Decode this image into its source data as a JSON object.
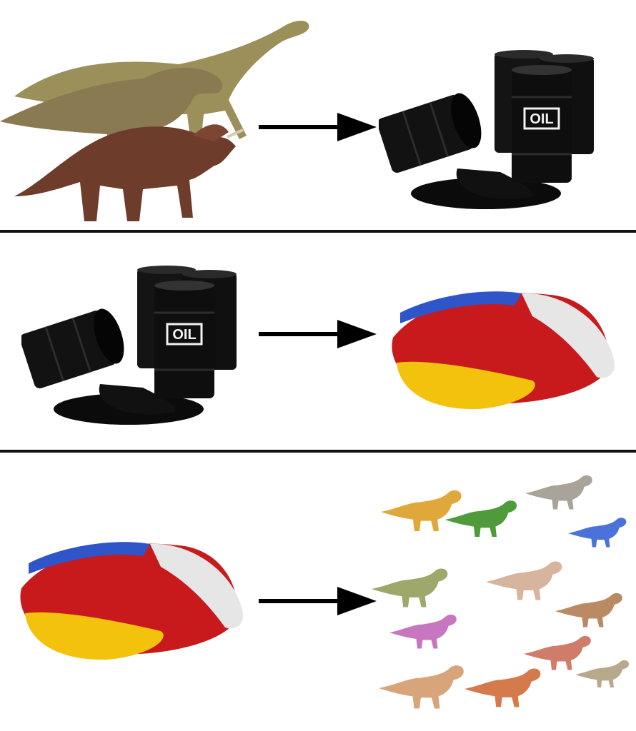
{
  "panels": [
    {
      "from": "dinosaurs-illustration",
      "to": "oil-barrels-illustration"
    },
    {
      "from": "oil-barrels-illustration",
      "to": "plastic-pellets-illustration"
    },
    {
      "from": "plastic-pellets-illustration",
      "to": "toy-dinosaurs-illustration"
    }
  ],
  "barrel_label": "OIL",
  "colors": {
    "arrow": "#000000",
    "divider": "#111111",
    "oil": "#0b0b0b",
    "pellet_red": "#c8191c",
    "pellet_yellow": "#f2c20d",
    "pellet_blue": "#2f55c9",
    "pellet_white": "#e6e6e6"
  }
}
